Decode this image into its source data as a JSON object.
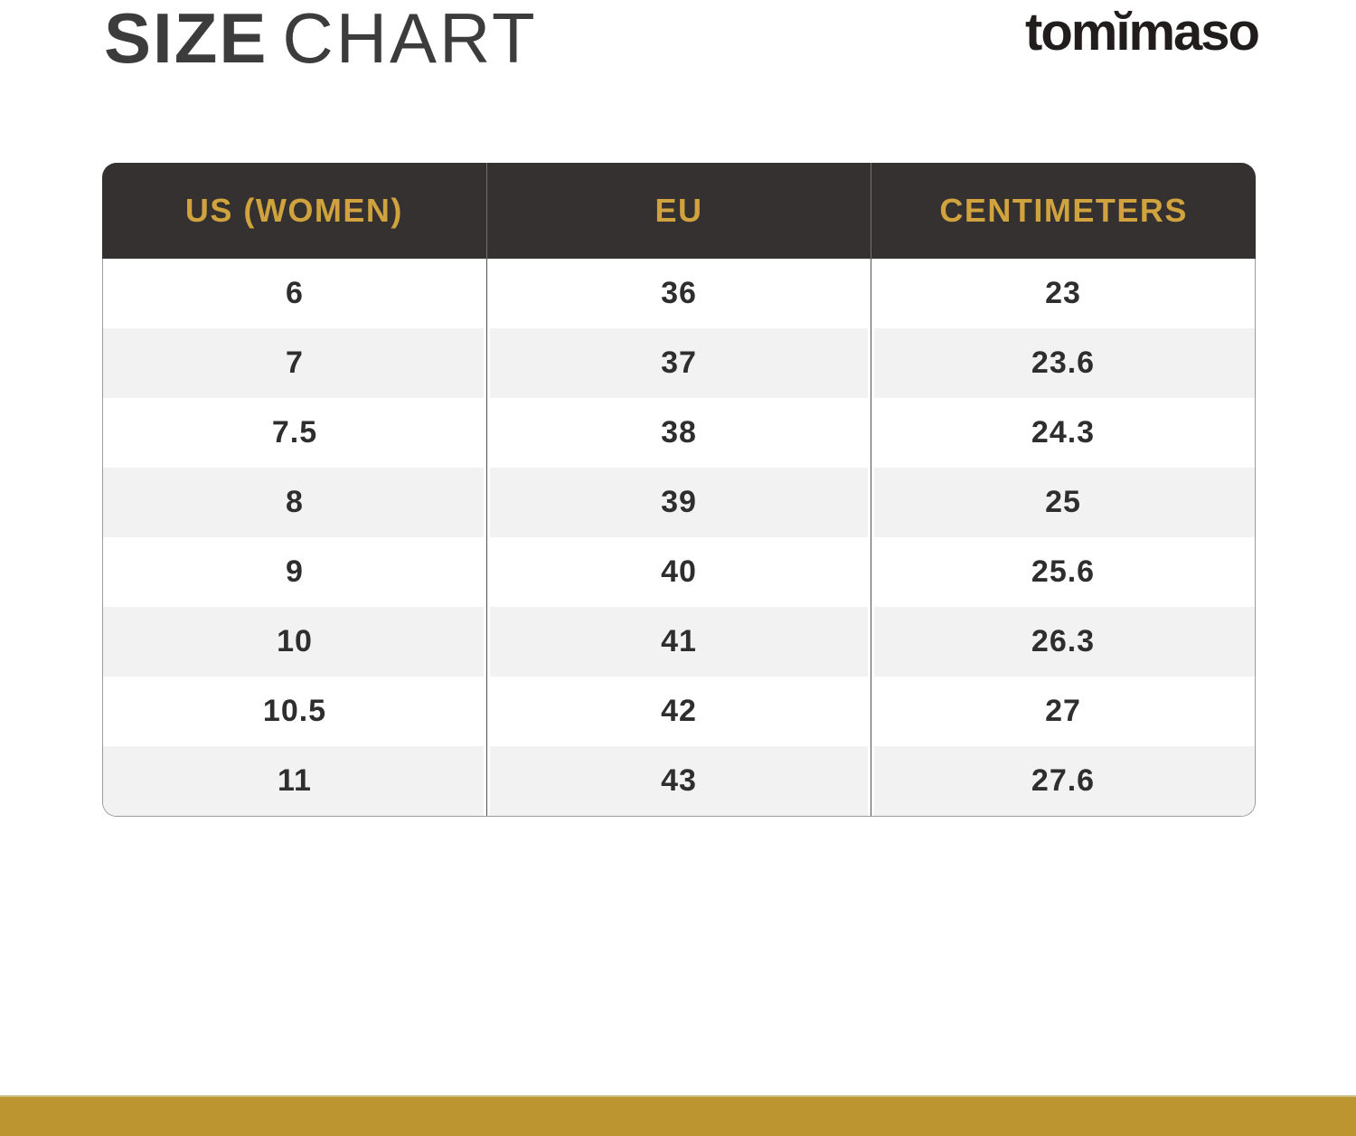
{
  "header": {
    "title_primary": "SIZE",
    "title_secondary": "CHART",
    "brand": "tomĭmaso"
  },
  "colors": {
    "header_bg": "#353130",
    "gold_text": "#D1A33E",
    "stripe": "#F2F2F2",
    "accent_bar": "#BC9531",
    "body_text": "#2E2E2E",
    "title_text": "#3C3C3C"
  },
  "chart_data": {
    "type": "table",
    "title": "SIZE CHART",
    "columns": [
      "US (WOMEN)",
      "EU",
      "CENTIMETERS"
    ],
    "rows": [
      [
        "6",
        "36",
        "23"
      ],
      [
        "7",
        "37",
        "23.6"
      ],
      [
        "7.5",
        "38",
        "24.3"
      ],
      [
        "8",
        "39",
        "25"
      ],
      [
        "9",
        "40",
        "25.6"
      ],
      [
        "10",
        "41",
        "26.3"
      ],
      [
        "10.5",
        "42",
        "27"
      ],
      [
        "11",
        "43",
        "27.6"
      ]
    ]
  }
}
